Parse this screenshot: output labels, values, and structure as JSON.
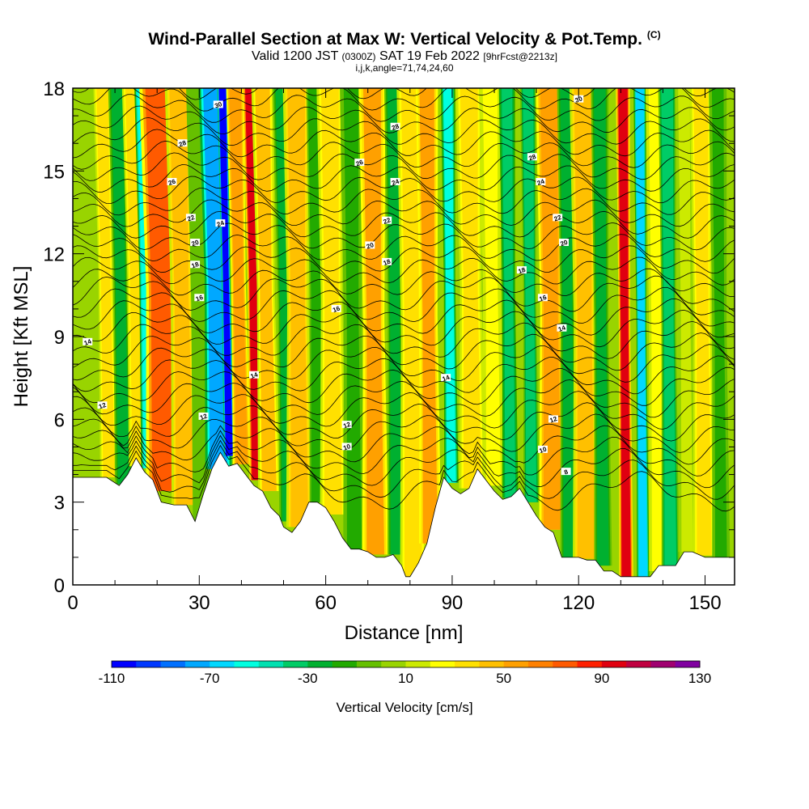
{
  "header": {
    "title": "Wind-Parallel Section at Max W: Vertical Velocity & Pot.Temp.",
    "copyright": "(C)",
    "valid_prefix": "Valid 1200 JST",
    "valid_utc": "(0300Z)",
    "valid_date": "SAT 19 Feb 2022",
    "forecast": "[9hrFcst@2213z]",
    "indices": "i,j,k,angle=71,74,24,60"
  },
  "chart_data": {
    "type": "heatmap",
    "xlabel": "Distance [nm]",
    "ylabel": "Height [Kft MSL]",
    "xlim": [
      0,
      157
    ],
    "ylim": [
      0,
      18
    ],
    "xticks": [
      0,
      30,
      60,
      90,
      120,
      150
    ],
    "yticks": [
      0,
      3,
      6,
      9,
      12,
      15,
      18
    ],
    "colorbar": {
      "label": "Vertical Velocity [cm/s]",
      "min": -110,
      "max": 130,
      "step": 10,
      "tick_labels": [
        "-110",
        "-70",
        "-30",
        "10",
        "50",
        "90",
        "130"
      ],
      "colors": [
        "#0000ff",
        "#0038ff",
        "#0070ff",
        "#00a8ff",
        "#00d8ff",
        "#00ffe0",
        "#00e0b0",
        "#00cc66",
        "#00b030",
        "#22aa00",
        "#66c000",
        "#99d400",
        "#ccea00",
        "#ffff00",
        "#ffe000",
        "#ffc000",
        "#ffa000",
        "#ff8000",
        "#ff5a00",
        "#ff2000",
        "#e00010",
        "#c00040",
        "#a00070",
        "#8000a0"
      ]
    },
    "terrain": [
      [
        0,
        3.9
      ],
      [
        4,
        3.9
      ],
      [
        8,
        3.9
      ],
      [
        11,
        3.6
      ],
      [
        13,
        4.0
      ],
      [
        15,
        4.6
      ],
      [
        17,
        4.1
      ],
      [
        19,
        3.8
      ],
      [
        21,
        3.0
      ],
      [
        24,
        2.9
      ],
      [
        27,
        2.9
      ],
      [
        29,
        2.3
      ],
      [
        31,
        3.3
      ],
      [
        33,
        4.2
      ],
      [
        35,
        4.8
      ],
      [
        37,
        4.3
      ],
      [
        39,
        4.4
      ],
      [
        41,
        4.0
      ],
      [
        43,
        3.6
      ],
      [
        45,
        3.4
      ],
      [
        47,
        2.8
      ],
      [
        49,
        2.5
      ],
      [
        50,
        2.1
      ],
      [
        52,
        1.9
      ],
      [
        54,
        2.3
      ],
      [
        56,
        3.0
      ],
      [
        58,
        3.0
      ],
      [
        60,
        2.8
      ],
      [
        62,
        2.3
      ],
      [
        64,
        1.7
      ],
      [
        66,
        1.3
      ],
      [
        68,
        1.3
      ],
      [
        70,
        1.2
      ],
      [
        72,
        1.0
      ],
      [
        74,
        1.0
      ],
      [
        76,
        1.1
      ],
      [
        78,
        0.7
      ],
      [
        79,
        0.3
      ],
      [
        80,
        0.3
      ],
      [
        82,
        0.8
      ],
      [
        84,
        1.5
      ],
      [
        86,
        2.8
      ],
      [
        88,
        3.9
      ],
      [
        90,
        3.5
      ],
      [
        92,
        3.3
      ],
      [
        94,
        3.5
      ],
      [
        96,
        4.2
      ],
      [
        98,
        3.8
      ],
      [
        100,
        3.4
      ],
      [
        102,
        3.1
      ],
      [
        104,
        3.2
      ],
      [
        106,
        3.5
      ],
      [
        108,
        3.0
      ],
      [
        110,
        2.5
      ],
      [
        112,
        2.1
      ],
      [
        114,
        1.9
      ],
      [
        116,
        1.0
      ],
      [
        118,
        1.0
      ],
      [
        120,
        1.0
      ],
      [
        122,
        0.9
      ],
      [
        124,
        0.9
      ],
      [
        126,
        0.5
      ],
      [
        128,
        0.5
      ],
      [
        130,
        0.3
      ],
      [
        133,
        0.3
      ],
      [
        135,
        0.3
      ],
      [
        137,
        0.3
      ],
      [
        139,
        0.7
      ],
      [
        141,
        0.7
      ],
      [
        143,
        0.7
      ],
      [
        145,
        1.2
      ],
      [
        147,
        1.2
      ],
      [
        150,
        1.0
      ],
      [
        153,
        1.0
      ],
      [
        157,
        1.0
      ]
    ],
    "velocity_bands": [
      {
        "x": 3,
        "w": 2.5,
        "value": 5
      },
      {
        "x": 7,
        "w": 2.0,
        "value": 35
      },
      {
        "x": 10.5,
        "w": 2.0,
        "value": -25
      },
      {
        "x": 14,
        "w": 2.2,
        "value": 35
      },
      {
        "x": 16.5,
        "w": 1.8,
        "value": -60
      },
      {
        "x": 20,
        "w": 4.0,
        "value": 75
      },
      {
        "x": 25,
        "w": 3.0,
        "value": 45
      },
      {
        "x": 29,
        "w": 2.0,
        "value": -10
      },
      {
        "x": 33,
        "w": 3.0,
        "value": -75
      },
      {
        "x": 35.5,
        "w": 1.2,
        "value": -105
      },
      {
        "x": 38.5,
        "w": 2.0,
        "value": 55
      },
      {
        "x": 42,
        "w": 1.6,
        "value": 95
      },
      {
        "x": 45,
        "w": 2.5,
        "value": 40
      },
      {
        "x": 49.5,
        "w": 2.0,
        "value": -30
      },
      {
        "x": 53,
        "w": 3.0,
        "value": 45
      },
      {
        "x": 57.5,
        "w": 2.0,
        "value": -20
      },
      {
        "x": 61,
        "w": 3.0,
        "value": 35
      },
      {
        "x": 66,
        "w": 2.5,
        "value": -15
      },
      {
        "x": 71,
        "w": 3.0,
        "value": 50
      },
      {
        "x": 76,
        "w": 2.0,
        "value": -25
      },
      {
        "x": 80,
        "w": 3.0,
        "value": 30
      },
      {
        "x": 84,
        "w": 2.5,
        "value": 50
      },
      {
        "x": 89,
        "w": 1.6,
        "value": -55
      },
      {
        "x": 94,
        "w": 3.0,
        "value": 35
      },
      {
        "x": 99,
        "w": 2.5,
        "value": 25
      },
      {
        "x": 103,
        "w": 1.8,
        "value": -40
      },
      {
        "x": 108,
        "w": 1.8,
        "value": -35
      },
      {
        "x": 113,
        "w": 3.0,
        "value": 55
      },
      {
        "x": 117,
        "w": 2.0,
        "value": -25
      },
      {
        "x": 121,
        "w": 3.0,
        "value": 45
      },
      {
        "x": 125,
        "w": 2.0,
        "value": -30
      },
      {
        "x": 130.5,
        "w": 1.6,
        "value": 95
      },
      {
        "x": 134.5,
        "w": 1.4,
        "value": -65
      },
      {
        "x": 138,
        "w": 2.0,
        "value": 25
      },
      {
        "x": 141,
        "w": 2.0,
        "value": -35
      },
      {
        "x": 145,
        "w": 2.0,
        "value": 10
      },
      {
        "x": 149,
        "w": 2.5,
        "value": 30
      },
      {
        "x": 153,
        "w": 2.0,
        "value": -15
      }
    ],
    "contour_labels": [
      {
        "text": "30",
        "x": 34.5,
        "y": 17.4
      },
      {
        "text": "28",
        "x": 26,
        "y": 16.0
      },
      {
        "text": "26",
        "x": 23.5,
        "y": 14.6
      },
      {
        "text": "22",
        "x": 28,
        "y": 13.3
      },
      {
        "text": "24",
        "x": 35,
        "y": 13.1
      },
      {
        "text": "20",
        "x": 29,
        "y": 12.4
      },
      {
        "text": "18",
        "x": 29,
        "y": 11.6
      },
      {
        "text": "16",
        "x": 30,
        "y": 10.4
      },
      {
        "text": "14",
        "x": 3.5,
        "y": 8.8
      },
      {
        "text": "14",
        "x": 43,
        "y": 7.6
      },
      {
        "text": "12",
        "x": 7,
        "y": 6.5
      },
      {
        "text": "12",
        "x": 31,
        "y": 6.1
      },
      {
        "text": "28",
        "x": 76.5,
        "y": 16.6
      },
      {
        "text": "26",
        "x": 68,
        "y": 15.3
      },
      {
        "text": "24",
        "x": 76.5,
        "y": 14.6
      },
      {
        "text": "22",
        "x": 74.5,
        "y": 13.2
      },
      {
        "text": "20",
        "x": 70.5,
        "y": 12.3
      },
      {
        "text": "18",
        "x": 74.5,
        "y": 11.7
      },
      {
        "text": "16",
        "x": 62.5,
        "y": 10.0
      },
      {
        "text": "12",
        "x": 65,
        "y": 5.8
      },
      {
        "text": "10",
        "x": 65,
        "y": 5.0
      },
      {
        "text": "14",
        "x": 88.5,
        "y": 7.5
      },
      {
        "text": "30",
        "x": 120,
        "y": 17.6
      },
      {
        "text": "28",
        "x": 109,
        "y": 15.5
      },
      {
        "text": "24",
        "x": 111,
        "y": 14.6
      },
      {
        "text": "22",
        "x": 115,
        "y": 13.3
      },
      {
        "text": "20",
        "x": 116.5,
        "y": 12.4
      },
      {
        "text": "18",
        "x": 106.5,
        "y": 11.4
      },
      {
        "text": "16",
        "x": 111.5,
        "y": 10.4
      },
      {
        "text": "14",
        "x": 116,
        "y": 9.3
      },
      {
        "text": "12",
        "x": 114,
        "y": 6.0
      },
      {
        "text": "10",
        "x": 111.5,
        "y": 4.9
      },
      {
        "text": "8",
        "x": 117,
        "y": 4.1
      }
    ]
  }
}
